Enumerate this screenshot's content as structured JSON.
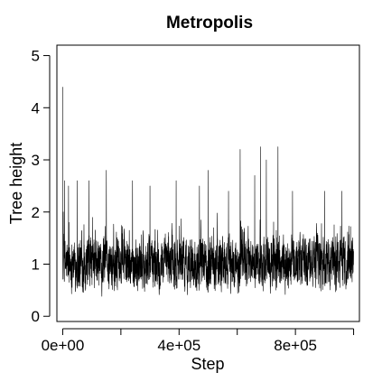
{
  "chart_data": {
    "type": "line",
    "title": "Metropolis",
    "xlabel": "Step",
    "ylabel": "Tree height",
    "xlim": [
      -20000,
      1020000
    ],
    "ylim": [
      -0.1,
      5.2
    ],
    "x_ticks": [
      0,
      200000,
      400000,
      600000,
      800000,
      1000000
    ],
    "x_tick_labels": [
      "0e+00",
      "",
      "4e+05",
      "",
      "8e+05",
      ""
    ],
    "y_ticks": [
      0,
      1,
      2,
      3,
      4,
      5
    ],
    "y_tick_labels": [
      "0",
      "1",
      "2",
      "3",
      "4",
      "5"
    ],
    "grid": false,
    "legend": "none",
    "series": [
      {
        "color": "#000000",
        "x_start": 0,
        "x_end": 1000000,
        "typical_range": [
          0.4,
          1.7
        ],
        "median": 1.0,
        "spikes": [
          {
            "x": 0,
            "y": 4.4
          },
          {
            "x": 6000,
            "y": 2.6
          },
          {
            "x": 20000,
            "y": 2.5
          },
          {
            "x": 50000,
            "y": 2.6
          },
          {
            "x": 90000,
            "y": 2.6
          },
          {
            "x": 150000,
            "y": 2.8
          },
          {
            "x": 240000,
            "y": 2.6
          },
          {
            "x": 300000,
            "y": 2.5
          },
          {
            "x": 390000,
            "y": 2.6
          },
          {
            "x": 470000,
            "y": 2.5
          },
          {
            "x": 500000,
            "y": 2.8
          },
          {
            "x": 570000,
            "y": 2.4
          },
          {
            "x": 610000,
            "y": 3.2
          },
          {
            "x": 660000,
            "y": 2.7
          },
          {
            "x": 680000,
            "y": 3.25
          },
          {
            "x": 700000,
            "y": 3.0
          },
          {
            "x": 740000,
            "y": 3.25
          },
          {
            "x": 790000,
            "y": 2.4
          },
          {
            "x": 900000,
            "y": 2.4
          },
          {
            "x": 960000,
            "y": 2.4
          }
        ]
      }
    ]
  }
}
